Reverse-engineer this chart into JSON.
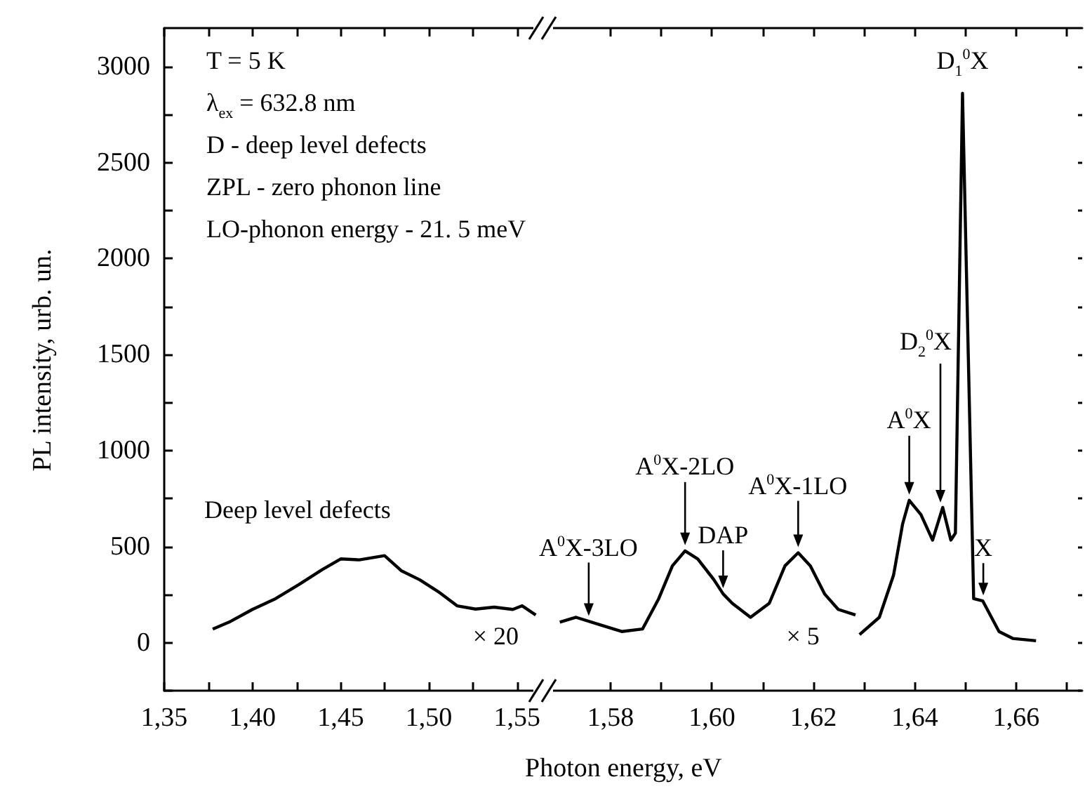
{
  "chart_data": [
    {
      "type": "line",
      "xlabel": "Photon energy, eV",
      "ylabel": "PL intensity, urb. un.",
      "marker": "none",
      "xlim": [
        1.35,
        1.564
      ],
      "ylim": [
        -250,
        3200
      ],
      "xticks": [
        {
          "value": 1.35,
          "label": "1,35"
        },
        {
          "value": 1.375,
          "label": null
        },
        {
          "value": 1.4,
          "label": "1,40"
        },
        {
          "value": 1.425,
          "label": null
        },
        {
          "value": 1.45,
          "label": "1,45"
        },
        {
          "value": 1.475,
          "label": null
        },
        {
          "value": 1.5,
          "label": "1,50"
        },
        {
          "value": 1.525,
          "label": null
        },
        {
          "value": 1.55,
          "label": "1,55"
        }
      ],
      "yticks": [
        {
          "value": -250,
          "label": null
        },
        0,
        {
          "value": 250,
          "label": null
        },
        500,
        {
          "value": 750,
          "label": null
        },
        1000,
        {
          "value": 1250,
          "label": null
        },
        1500,
        {
          "value": 1750,
          "label": null
        },
        2000,
        {
          "value": 2250,
          "label": null
        },
        2500,
        {
          "value": 2750,
          "label": null
        },
        3000
      ],
      "annotations": [
        "T = 5 K",
        "λ$_{ex}$ = 632.8 nm",
        "D - deep level defects",
        "ZPL - zero phonon line",
        "LO-phonon energy - 21. 5 meV",
        {
          "text": "Deep level defects",
          "x": 1.4749,
          "y": 453
        },
        {
          "text": "× 20",
          "x": 1.5476,
          "y": 173
        }
      ],
      "series": [
        {
          "color": "#000000",
          "x": [
            1.3775,
            1.3868,
            1.4,
            1.4131,
            1.4263,
            1.4395,
            1.45,
            1.4606,
            1.4749,
            1.4843,
            1.4949,
            1.5054,
            1.516,
            1.5265,
            1.537,
            1.5476,
            1.5529,
            1.5606
          ],
          "values": [
            71,
            107,
            173,
            229,
            302,
            380,
            436,
            431,
            453,
            375,
            327,
            265,
            192,
            175,
            185,
            173,
            192,
            144
          ]
        }
      ]
    },
    {
      "type": "line",
      "marker": "none",
      "tick_labels": "x",
      "xlim": [
        1.567,
        1.673
      ],
      "ylim": [
        -250,
        3200
      ],
      "xticks": [
        {
          "value": 1.58,
          "label": "1,58"
        },
        {
          "value": 1.59,
          "label": null
        },
        {
          "value": 1.6,
          "label": "1,60"
        },
        {
          "value": 1.61,
          "label": null
        },
        {
          "value": 1.62,
          "label": "1,62"
        },
        {
          "value": 1.63,
          "label": null
        },
        {
          "value": 1.64,
          "label": "1,64"
        },
        {
          "value": 1.65,
          "label": null
        },
        {
          "value": 1.66,
          "label": "1,66"
        },
        {
          "value": 1.67,
          "label": null
        }
      ],
      "yticks": [
        {
          "value": -250,
          "label": null
        },
        0,
        {
          "value": 250,
          "label": null
        },
        500,
        {
          "value": 750,
          "label": null
        },
        1000,
        {
          "value": 1250,
          "label": null
        },
        1500,
        {
          "value": 1750,
          "label": null
        },
        2000,
        {
          "value": 2250,
          "label": null
        },
        2500,
        {
          "value": 2750,
          "label": null
        },
        3000
      ],
      "annotations": [
        {
          "text": "A$^{0}$X-3LO",
          "x": 1.5757,
          "y": 110
        },
        {
          "text": "A$^{0}$X-2LO",
          "x": 1.5947,
          "y": 478
        },
        {
          "text": "DAP",
          "x": 1.6022,
          "y": 254
        },
        {
          "text": "A$^{0}$X-1LO",
          "x": 1.617,
          "y": 468
        },
        {
          "text": "A$^{0}$X",
          "x": 1.6389,
          "y": 741
        },
        "D$_{2}$$^{0}$X",
        {
          "text": "D$_{1}$$^{0}$X",
          "x": 1.6494,
          "y": 2860
        },
        {
          "text": "X",
          "x": 1.6535,
          "y": 217
        },
        {
          "text": "× 5",
          "x": 1.6249,
          "y": 173
        }
      ],
      "series": [
        {
          "color": "#000000",
          "x": [
            1.57,
            1.5732,
            1.5777,
            1.5822,
            1.5863,
            1.5895,
            1.5922,
            1.5947,
            1.5972,
            1.6004,
            1.6022,
            1.604,
            1.6076,
            1.6113,
            1.6144,
            1.617,
            1.6194,
            1.6222,
            1.6249,
            1.6283
          ],
          "values": [
            107,
            132,
            95,
            58,
            71,
            229,
            400,
            478,
            436,
            327,
            254,
            205,
            132,
            205,
            400,
            468,
            400,
            254,
            173,
            144
          ]
        },
        {
          "color": "#000000",
          "x": [
            1.6291,
            1.633,
            1.6358,
            1.6376,
            1.6389,
            1.6412,
            1.6435,
            1.6455,
            1.6471,
            1.648,
            1.6494,
            1.6516,
            1.6534,
            1.6566,
            1.6593,
            1.6639
          ],
          "values": [
            42,
            132,
            351,
            619,
            741,
            667,
            534,
            704,
            534,
            570,
            2860,
            229,
            217,
            58,
            22,
            10
          ]
        }
      ]
    }
  ]
}
